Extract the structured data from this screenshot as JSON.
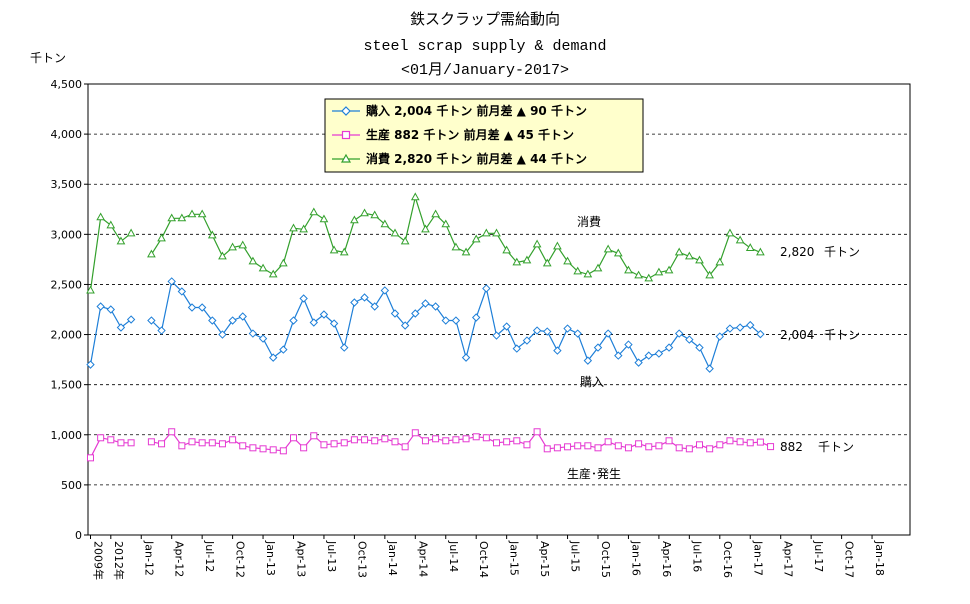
{
  "chart_data": {
    "type": "line",
    "title": "鉄スクラップ需給動向",
    "subtitle": "steel scrap supply  & demand",
    "period": "<01月/January-2017>",
    "ylabel": "千トン",
    "ylim": [
      0,
      4500
    ],
    "yticks": [
      "0",
      "500",
      "1,000",
      "1,500",
      "2,000",
      "2,500",
      "3,000",
      "3,500",
      "4,000",
      "4,500"
    ],
    "grid": "horizontal dashed",
    "legend_placement": "top-center",
    "x_count": 67,
    "xticks": [
      {
        "i": 0,
        "label": "2009年"
      },
      {
        "i": 2,
        "label": "2012年"
      },
      {
        "i": 5,
        "label": "Jan-12"
      },
      {
        "i": 8,
        "label": "Apr-12"
      },
      {
        "i": 11,
        "label": "Jul-12"
      },
      {
        "i": 14,
        "label": "Oct-12"
      },
      {
        "i": 17,
        "label": "Jan-13"
      },
      {
        "i": 20,
        "label": "Apr-13"
      },
      {
        "i": 23,
        "label": "Jul-13"
      },
      {
        "i": 26,
        "label": "Oct-13"
      },
      {
        "i": 29,
        "label": "Jan-14"
      },
      {
        "i": 32,
        "label": "Apr-14"
      },
      {
        "i": 35,
        "label": "Jul-14"
      },
      {
        "i": 38,
        "label": "Oct-14"
      },
      {
        "i": 41,
        "label": "Jan-15"
      },
      {
        "i": 44,
        "label": "Apr-15"
      },
      {
        "i": 47,
        "label": "Jul-15"
      },
      {
        "i": 50,
        "label": "Oct-15"
      },
      {
        "i": 53,
        "label": "Jan-16"
      },
      {
        "i": 56,
        "label": "Apr-16"
      },
      {
        "i": 59,
        "label": "Jul-16"
      },
      {
        "i": 62,
        "label": "Oct-16"
      },
      {
        "i": 65,
        "label": "Jan-17"
      },
      {
        "i": 68,
        "label": "Apr-17"
      },
      {
        "i": 71,
        "label": "Jul-17"
      },
      {
        "i": 74,
        "label": "Oct-17"
      },
      {
        "i": 77,
        "label": "Jan-18"
      }
    ],
    "series": [
      {
        "key": "purchase",
        "color": "#1e7fd8",
        "marker": "diamond",
        "legend": "購入  2,004 千トン 前月差 ▲ 90 千トン",
        "annotation": "購入",
        "end_label": "2,004",
        "end_unit": "千トン",
        "segments": [
          {
            "start": 0,
            "values": [
              1700,
              2280,
              2250,
              2070,
              2150
            ]
          },
          {
            "start": 6,
            "values": [
              2140,
              2040,
              2530,
              2430,
              2270,
              2270,
              2140,
              2000,
              2140,
              2180,
              2010,
              1960,
              1770,
              1850,
              2140,
              2360,
              2120,
              2200,
              2110,
              1870,
              2320,
              2370,
              2280,
              2440,
              2210,
              2090,
              2210,
              2310,
              2280,
              2140,
              2140,
              1770,
              2170,
              2460,
              1990,
              2080,
              1860,
              1940,
              2040,
              2030,
              1840,
              2060,
              2010,
              1740,
              1870,
              2010,
              1790,
              1900,
              1720,
              1790,
              1810,
              1870,
              2010,
              1950,
              1870,
              1660,
              1980,
              2060,
              2070,
              2094,
              2004
            ]
          }
        ]
      },
      {
        "key": "production",
        "color": "#e53ad2",
        "marker": "square",
        "legend": "生産 882 千トン 前月差 ▲ 45 千トン",
        "annotation": "生産･発生",
        "end_label": "882",
        "end_unit": "千トン",
        "segments": [
          {
            "start": 0,
            "values": [
              770,
              970,
              950,
              920,
              920
            ]
          },
          {
            "start": 6,
            "values": [
              930,
              910,
              1030,
              890,
              930,
              920,
              920,
              910,
              950,
              890,
              870,
              860,
              850,
              840,
              970,
              870,
              990,
              900,
              910,
              920,
              950,
              950,
              940,
              960,
              930,
              880,
              1020,
              940,
              960,
              940,
              950,
              960,
              980,
              970,
              920,
              930,
              940,
              900,
              1030,
              860,
              870,
              880,
              890,
              890,
              870,
              930,
              890,
              870,
              910,
              880,
              890,
              940,
              870,
              860,
              900,
              860,
              900,
              940,
              930,
              920,
              927,
              882
            ]
          }
        ]
      },
      {
        "key": "consumption",
        "color": "#33a02c",
        "marker": "triangle",
        "legend": "消費 2,820 千トン 前月差 ▲ 44 千トン",
        "annotation": "消費",
        "end_label": "2,820",
        "end_unit": "千トン",
        "segments": [
          {
            "start": 0,
            "values": [
              2440,
              3170,
              3090,
              2930,
              3010
            ]
          },
          {
            "start": 6,
            "values": [
              2800,
              2960,
              3160,
              3160,
              3200,
              3200,
              2990,
              2780,
              2870,
              2890,
              2730,
              2660,
              2600,
              2710,
              3060,
              3050,
              3220,
              3150,
              2840,
              2820,
              3140,
              3210,
              3190,
              3100,
              3010,
              2930,
              3370,
              3050,
              3200,
              3100,
              2870,
              2820,
              2950,
              3010,
              3010,
              2840,
              2720,
              2740,
              2900,
              2710,
              2880,
              2730,
              2630,
              2600,
              2660,
              2850,
              2810,
              2640,
              2590,
              2560,
              2620,
              2640,
              2820,
              2780,
              2740,
              2590,
              2720,
              3010,
              2940,
              2864,
              2820
            ]
          }
        ]
      }
    ]
  }
}
